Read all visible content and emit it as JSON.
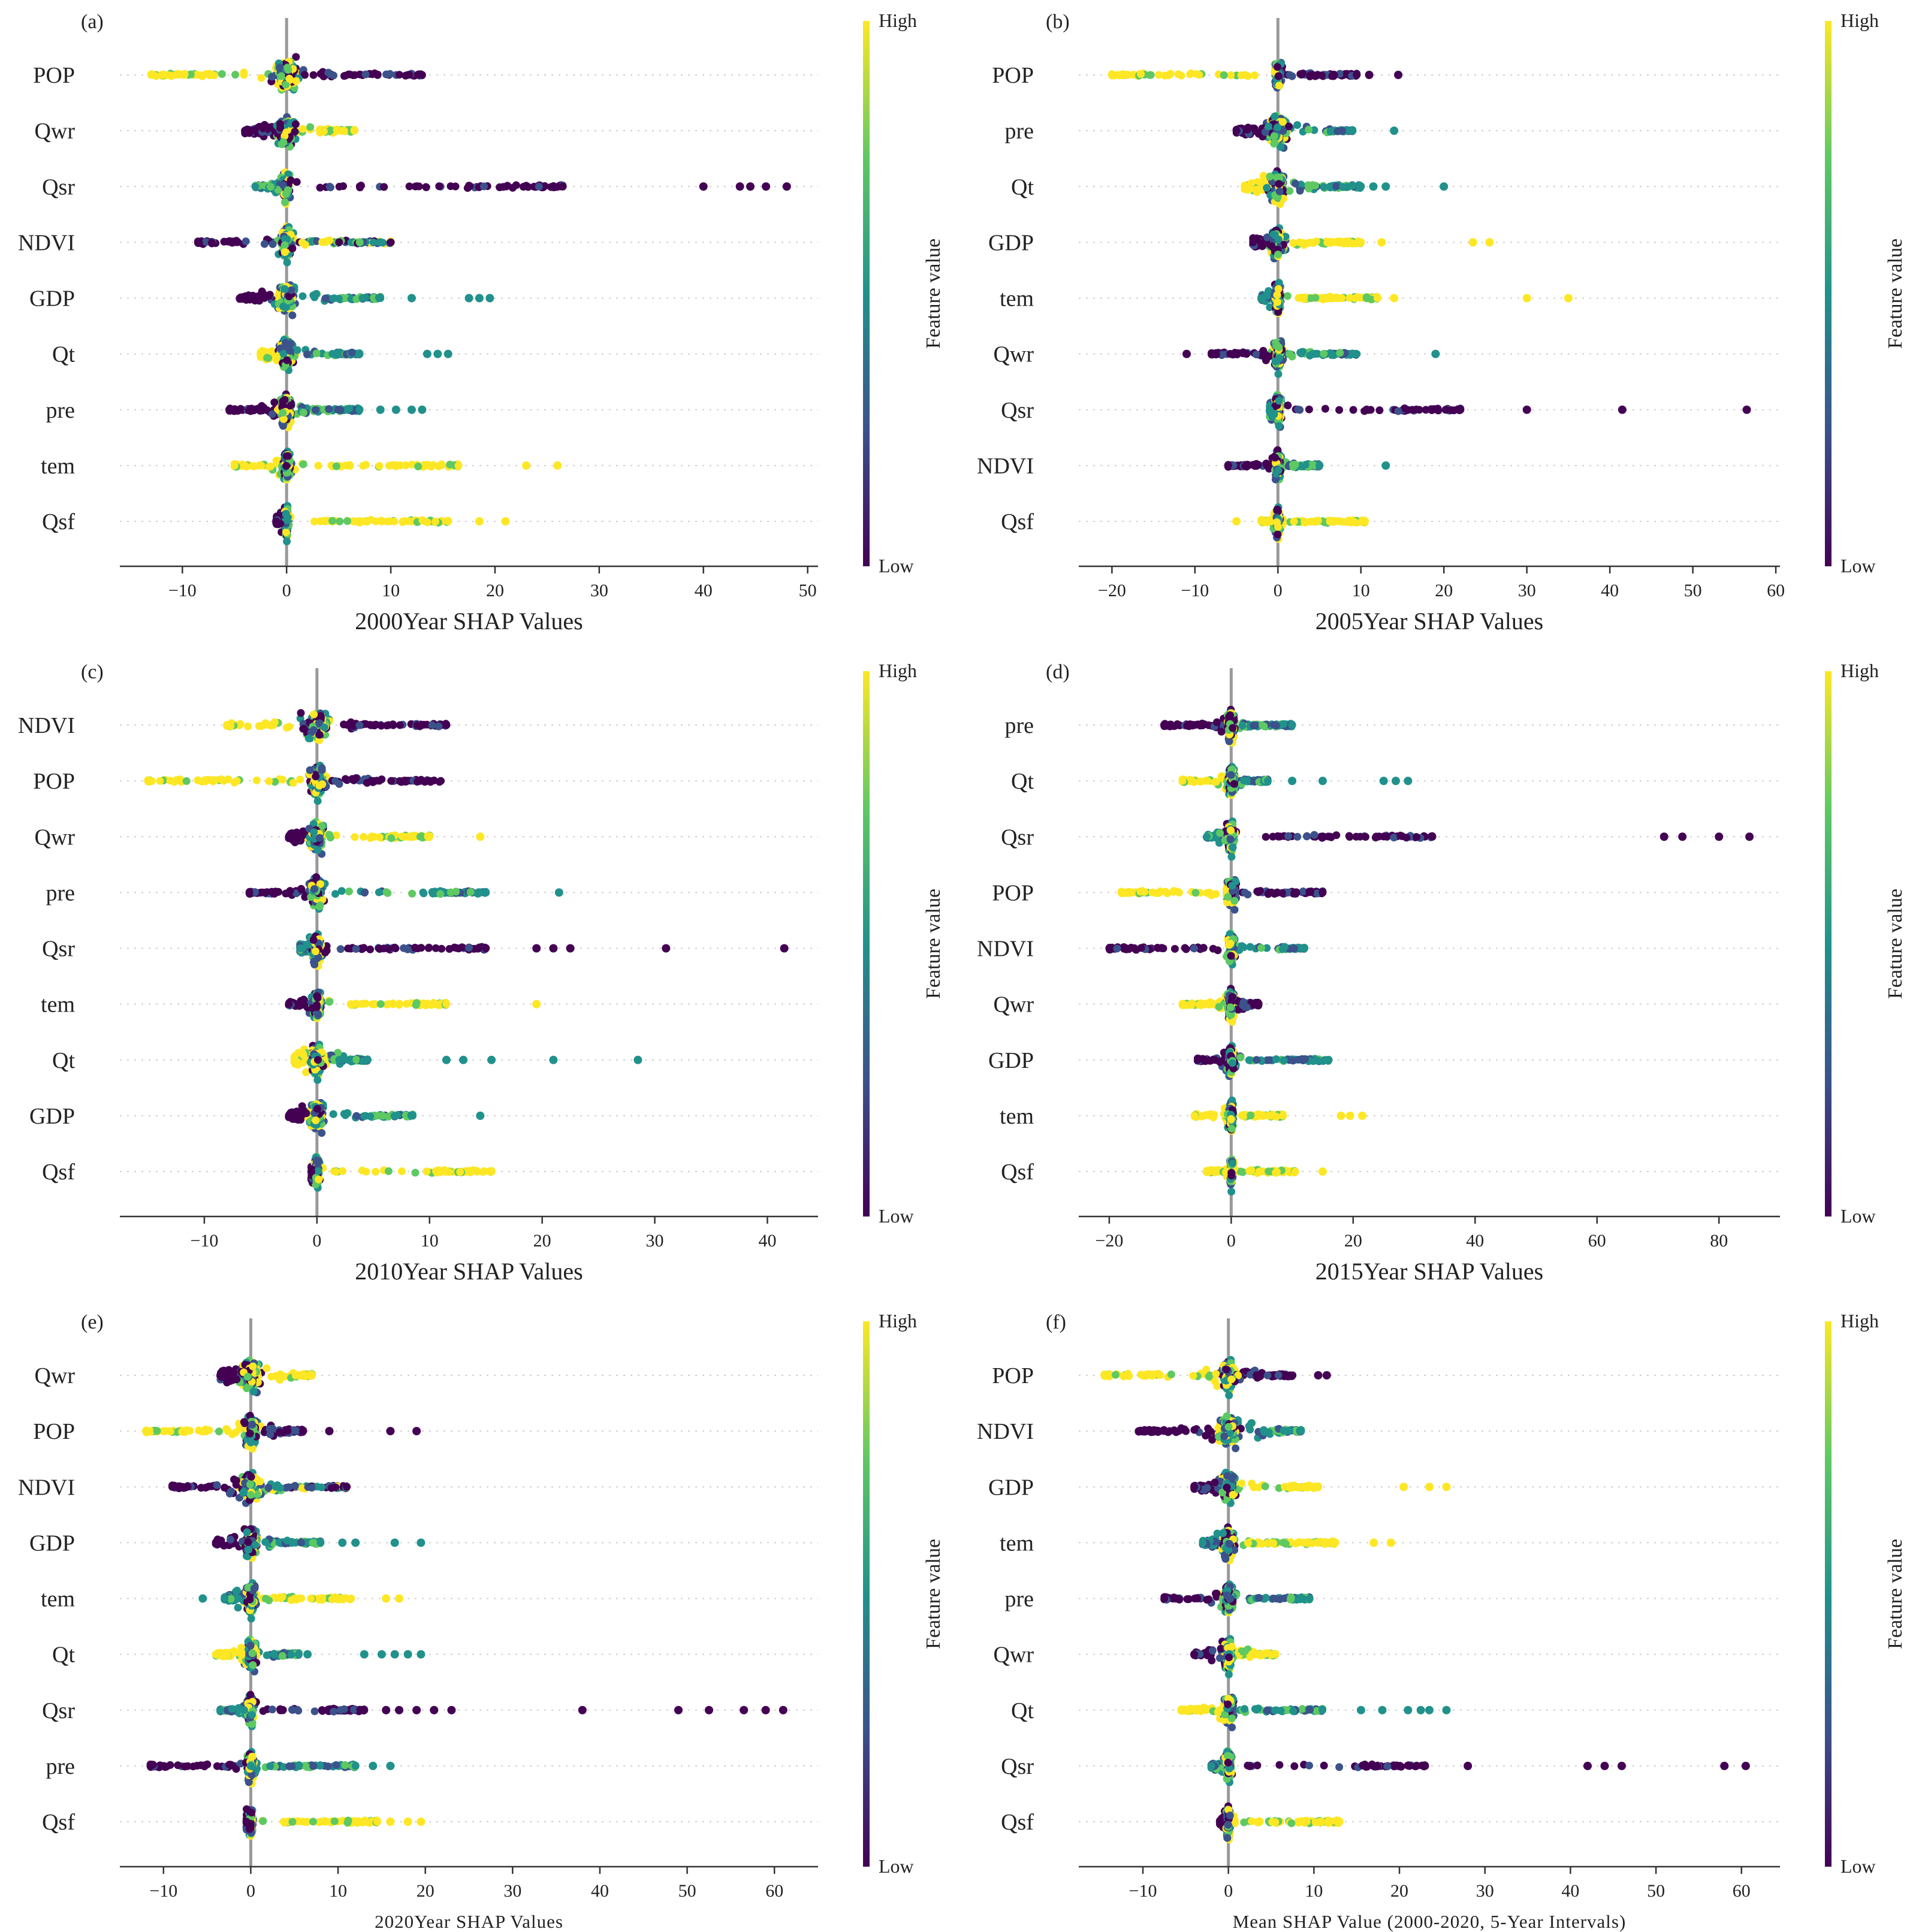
{
  "chart_data": [
    {
      "type": "scatter",
      "subtype": "shap-beeswarm",
      "panel_label": "(a)",
      "xlabel": "2000Year SHAP Values",
      "xlim": [
        -16,
        51
      ],
      "xticks": [
        -10,
        0,
        10,
        20,
        30,
        40,
        50
      ],
      "tick_labels": [
        "−10",
        "0",
        "10",
        "20",
        "30",
        "40",
        "50"
      ],
      "features": [
        {
          "name": "POP",
          "range": [
            -13,
            13
          ],
          "outliers": [],
          "low_side": "high",
          "high_side": "low",
          "core": 2.5
        },
        {
          "name": "Qwr",
          "range": [
            -4,
            6.5
          ],
          "outliers": [],
          "low_side": "low",
          "high_side": "high",
          "core": 2
        },
        {
          "name": "Qsr",
          "range": [
            -3,
            26.5
          ],
          "outliers": [
            40,
            43.5,
            44.5,
            46,
            48
          ],
          "low_side": "mid",
          "high_side": "low",
          "core": 1
        },
        {
          "name": "NDVI",
          "range": [
            -8.5,
            10
          ],
          "outliers": [],
          "low_side": "low",
          "high_side": "mixed",
          "core": 1.5
        },
        {
          "name": "GDP",
          "range": [
            -4.5,
            9
          ],
          "outliers": [
            12,
            17.5,
            18.5,
            19.5
          ],
          "low_side": "low",
          "high_side": "mid",
          "core": 2
        },
        {
          "name": "Qt",
          "range": [
            -2.5,
            7
          ],
          "outliers": [
            13.5,
            14.5,
            15.5
          ],
          "low_side": "high",
          "high_side": "mid",
          "core": 1.5
        },
        {
          "name": "pre",
          "range": [
            -5.5,
            7
          ],
          "outliers": [
            9,
            10.5,
            12,
            13
          ],
          "low_side": "low",
          "high_side": "mid",
          "core": 1.5
        },
        {
          "name": "tem",
          "range": [
            -5,
            16.5
          ],
          "outliers": [
            23,
            26
          ],
          "low_side": "high",
          "high_side": "high",
          "core": 1
        },
        {
          "name": "Qsf",
          "range": [
            -1,
            15.5
          ],
          "outliers": [
            18.5,
            21
          ],
          "low_side": "low",
          "high_side": "high",
          "core": 0.6
        }
      ]
    },
    {
      "type": "scatter",
      "subtype": "shap-beeswarm",
      "panel_label": "(b)",
      "xlabel": "2005Year SHAP Values",
      "xlim": [
        -24,
        60.5
      ],
      "xticks": [
        -20,
        -10,
        0,
        10,
        20,
        30,
        40,
        50,
        60
      ],
      "tick_labels": [
        "−20",
        "−10",
        "0",
        "10",
        "20",
        "30",
        "40",
        "50",
        "60"
      ],
      "features": [
        {
          "name": "POP",
          "range": [
            -20,
            9.5
          ],
          "outliers": [
            11,
            14.5
          ],
          "low_side": "high",
          "high_side": "low",
          "core": 1
        },
        {
          "name": "pre",
          "range": [
            -5,
            9
          ],
          "outliers": [
            14
          ],
          "low_side": "low",
          "high_side": "mid",
          "core": 2.5
        },
        {
          "name": "Qt",
          "range": [
            -4,
            10
          ],
          "outliers": [
            11.5,
            13,
            20
          ],
          "low_side": "high",
          "high_side": "mid",
          "core": 2.5
        },
        {
          "name": "GDP",
          "range": [
            -3,
            10
          ],
          "outliers": [
            12.5,
            23.5,
            25.5
          ],
          "low_side": "low",
          "high_side": "high",
          "core": 2
        },
        {
          "name": "tem",
          "range": [
            -2,
            12
          ],
          "outliers": [
            14,
            30,
            35
          ],
          "low_side": "mid",
          "high_side": "high",
          "core": 1
        },
        {
          "name": "Qwr",
          "range": [
            -8,
            9.5
          ],
          "outliers": [
            -11,
            19
          ],
          "low_side": "low",
          "high_side": "mid",
          "core": 1.5
        },
        {
          "name": "Qsr",
          "range": [
            -1,
            22
          ],
          "outliers": [
            30,
            41.5,
            56.5
          ],
          "low_side": "mid",
          "high_side": "low",
          "core": 1
        },
        {
          "name": "NDVI",
          "range": [
            -6,
            5
          ],
          "outliers": [
            13
          ],
          "low_side": "low",
          "high_side": "mid",
          "core": 1
        },
        {
          "name": "Qsf",
          "range": [
            -2,
            10.5
          ],
          "outliers": [
            -5
          ],
          "low_side": "high",
          "high_side": "high",
          "core": 0.6
        }
      ]
    },
    {
      "type": "scatter",
      "subtype": "shap-beeswarm",
      "panel_label": "(c)",
      "xlabel": "2010Year SHAP Values",
      "xlim": [
        -17.5,
        44.5
      ],
      "xticks": [
        -10,
        0,
        10,
        20,
        30,
        40
      ],
      "tick_labels": [
        "−10",
        "0",
        "10",
        "20",
        "30",
        "40"
      ],
      "features": [
        {
          "name": "NDVI",
          "range": [
            -8,
            11.5
          ],
          "outliers": [],
          "low_side": "high",
          "high_side": "low",
          "core": 2.5
        },
        {
          "name": "POP",
          "range": [
            -15,
            11
          ],
          "outliers": [],
          "low_side": "high",
          "high_side": "low",
          "core": 2
        },
        {
          "name": "Qwr",
          "range": [
            -2.5,
            10
          ],
          "outliers": [
            14.5
          ],
          "low_side": "low",
          "high_side": "high",
          "core": 1.5
        },
        {
          "name": "pre",
          "range": [
            -6,
            15
          ],
          "outliers": [
            21.5
          ],
          "low_side": "low",
          "high_side": "mid",
          "core": 1.5
        },
        {
          "name": "Qsr",
          "range": [
            -1.5,
            15
          ],
          "outliers": [
            19.5,
            21,
            22.5,
            31,
            41.5
          ],
          "low_side": "mid",
          "high_side": "low",
          "core": 1
        },
        {
          "name": "tem",
          "range": [
            -2.5,
            11.5
          ],
          "outliers": [
            19.5
          ],
          "low_side": "low",
          "high_side": "high",
          "core": 1
        },
        {
          "name": "Qt",
          "range": [
            -2,
            4.5
          ],
          "outliers": [
            11.5,
            13,
            15.5,
            21,
            28.5
          ],
          "low_side": "high",
          "high_side": "mid",
          "core": 1.5
        },
        {
          "name": "GDP",
          "range": [
            -2.5,
            8.5
          ],
          "outliers": [
            14.5
          ],
          "low_side": "low",
          "high_side": "mid",
          "core": 1.5
        },
        {
          "name": "Qsf",
          "range": [
            -0.5,
            15.5
          ],
          "outliers": [],
          "low_side": "low",
          "high_side": "high",
          "core": 0.6
        }
      ]
    },
    {
      "type": "scatter",
      "subtype": "shap-beeswarm",
      "panel_label": "(d)",
      "xlabel": "2015Year SHAP Values",
      "xlim": [
        -25,
        90
      ],
      "xticks": [
        -20,
        0,
        20,
        40,
        60,
        80
      ],
      "tick_labels": [
        "−20",
        "0",
        "20",
        "40",
        "60",
        "80"
      ],
      "features": [
        {
          "name": "pre",
          "range": [
            -11,
            10
          ],
          "outliers": [],
          "low_side": "low",
          "high_side": "mid",
          "core": 1.5
        },
        {
          "name": "Qt",
          "range": [
            -8,
            6
          ],
          "outliers": [
            10,
            15,
            25,
            27,
            29
          ],
          "low_side": "high",
          "high_side": "mid",
          "core": 1.5
        },
        {
          "name": "Qsr",
          "range": [
            -4,
            33
          ],
          "outliers": [
            71,
            74,
            80,
            85
          ],
          "low_side": "mid",
          "high_side": "low",
          "core": 1.5
        },
        {
          "name": "POP",
          "range": [
            -18,
            15
          ],
          "outliers": [],
          "low_side": "high",
          "high_side": "low",
          "core": 2
        },
        {
          "name": "NDVI",
          "range": [
            -20,
            12
          ],
          "outliers": [],
          "low_side": "low",
          "high_side": "mid",
          "core": 1.5
        },
        {
          "name": "Qwr",
          "range": [
            -8,
            4.5
          ],
          "outliers": [],
          "low_side": "high",
          "high_side": "low",
          "core": 1.5
        },
        {
          "name": "GDP",
          "range": [
            -5.5,
            16
          ],
          "outliers": [],
          "low_side": "low",
          "high_side": "mid",
          "core": 1.5
        },
        {
          "name": "tem",
          "range": [
            -6,
            8.5
          ],
          "outliers": [
            18,
            19.5,
            21.5
          ],
          "low_side": "high",
          "high_side": "high",
          "core": 1
        },
        {
          "name": "Qsf",
          "range": [
            -4,
            10.5
          ],
          "outliers": [
            15
          ],
          "low_side": "high",
          "high_side": "high",
          "core": 0.6
        }
      ]
    },
    {
      "type": "scatter",
      "subtype": "shap-beeswarm",
      "panel_label": "(e)",
      "xlabel": "2020Year SHAP Values",
      "xlim": [
        -15,
        65
      ],
      "xticks": [
        -10,
        0,
        10,
        20,
        30,
        40,
        50,
        60
      ],
      "tick_labels": [
        "−10",
        "0",
        "10",
        "20",
        "30",
        "40",
        "50",
        "60"
      ],
      "features": [
        {
          "name": "Qwr",
          "range": [
            -3.5,
            7
          ],
          "outliers": [],
          "low_side": "low",
          "high_side": "high",
          "core": 2.5
        },
        {
          "name": "POP",
          "range": [
            -12,
            6
          ],
          "outliers": [
            9,
            16,
            19
          ],
          "low_side": "high",
          "high_side": "low",
          "core": 2
        },
        {
          "name": "NDVI",
          "range": [
            -9,
            11
          ],
          "outliers": [],
          "low_side": "low",
          "high_side": "mixed",
          "core": 2.5
        },
        {
          "name": "GDP",
          "range": [
            -4,
            8
          ],
          "outliers": [
            10.5,
            12,
            16.5,
            19.5
          ],
          "low_side": "low",
          "high_side": "mid",
          "core": 2
        },
        {
          "name": "tem",
          "range": [
            -3,
            11.5
          ],
          "outliers": [
            -5.5,
            15.5,
            17
          ],
          "low_side": "mid",
          "high_side": "high",
          "core": 1.5
        },
        {
          "name": "Qt",
          "range": [
            -4,
            5.5
          ],
          "outliers": [
            6.5,
            13,
            15,
            16.5,
            18,
            19.5
          ],
          "low_side": "high",
          "high_side": "mid",
          "core": 1.5
        },
        {
          "name": "Qsr",
          "range": [
            -3.5,
            13
          ],
          "outliers": [
            15.5,
            17,
            19,
            21,
            23,
            38,
            49,
            52.5,
            56.5,
            59,
            61
          ],
          "low_side": "mid",
          "high_side": "low",
          "core": 1
        },
        {
          "name": "pre",
          "range": [
            -11.5,
            12
          ],
          "outliers": [
            14,
            16
          ],
          "low_side": "low",
          "high_side": "mid",
          "core": 1
        },
        {
          "name": "Qsf",
          "range": [
            -0.5,
            14.5
          ],
          "outliers": [
            16,
            18,
            19.5
          ],
          "low_side": "low",
          "high_side": "high",
          "core": 0.6
        }
      ]
    },
    {
      "type": "scatter",
      "subtype": "shap-beeswarm",
      "panel_label": "(f)",
      "xlabel": "Mean SHAP Value (2000-2020, 5-Year Intervals)",
      "xlim": [
        -17.5,
        64.5
      ],
      "xticks": [
        -10,
        0,
        10,
        20,
        30,
        40,
        50,
        60
      ],
      "tick_labels": [
        "−10",
        "0",
        "10",
        "20",
        "30",
        "40",
        "50",
        "60"
      ],
      "features": [
        {
          "name": "POP",
          "range": [
            -14.5,
            7.5
          ],
          "outliers": [
            10.5,
            11.5
          ],
          "low_side": "high",
          "high_side": "low",
          "core": 2
        },
        {
          "name": "NDVI",
          "range": [
            -10.5,
            8.5
          ],
          "outliers": [],
          "low_side": "low",
          "high_side": "mid",
          "core": 3
        },
        {
          "name": "GDP",
          "range": [
            -4,
            10.5
          ],
          "outliers": [
            20.5,
            23.5,
            25.5
          ],
          "low_side": "low",
          "high_side": "high",
          "core": 2
        },
        {
          "name": "tem",
          "range": [
            -3,
            12.5
          ],
          "outliers": [
            17,
            19
          ],
          "low_side": "mid",
          "high_side": "high",
          "core": 1.5
        },
        {
          "name": "pre",
          "range": [
            -7.5,
            9.5
          ],
          "outliers": [],
          "low_side": "low",
          "high_side": "mid",
          "core": 1.5
        },
        {
          "name": "Qwr",
          "range": [
            -4,
            5.5
          ],
          "outliers": [],
          "low_side": "low",
          "high_side": "high",
          "core": 1.5
        },
        {
          "name": "Qt",
          "range": [
            -5.5,
            11
          ],
          "outliers": [
            15.5,
            18,
            21,
            22.5,
            23.5,
            25.5
          ],
          "low_side": "high",
          "high_side": "mid",
          "core": 1.5
        },
        {
          "name": "Qsr",
          "range": [
            -2,
            23
          ],
          "outliers": [
            28,
            42,
            44,
            46,
            58,
            60.5
          ],
          "low_side": "mid",
          "high_side": "low",
          "core": 1
        },
        {
          "name": "Qsf",
          "range": [
            -1,
            13
          ],
          "outliers": [],
          "low_side": "low",
          "high_side": "high",
          "core": 0.6
        }
      ]
    }
  ],
  "colorbar": {
    "title": "Feature value",
    "high_label": "High",
    "low_label": "Low",
    "colors": {
      "low": "#440154",
      "mid_low": "#3b528b",
      "mid": "#21918c",
      "mid_high": "#5ec962",
      "high": "#fde725"
    }
  }
}
